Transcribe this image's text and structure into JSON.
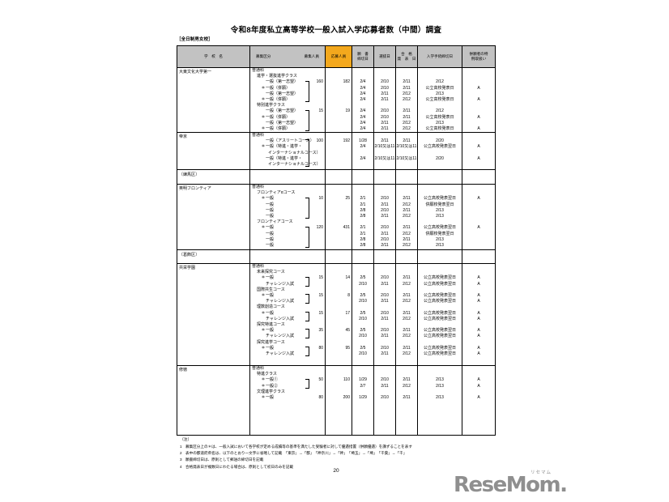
{
  "title": "令和8年度私立高等学校一般入試入学応募者数（中間）調査",
  "category_label": "［全日制男女校］",
  "colors": {
    "header_bg": "#c2c2c2",
    "applicants_bg": "#f3a81d",
    "logo_gray": "#8f8f8f"
  },
  "header": {
    "school_name": "学　校　名",
    "category": "募集区分",
    "capacity": "募集人員",
    "applicants": "応募人員",
    "deadline_l1": "願　書",
    "deadline_l2": "締切日",
    "selection": "選抜日",
    "announce_l1": "合　格",
    "announce_l2": "発　表　日",
    "procedure": "入学手続締切日",
    "special_l1": "併願者の特",
    "special_l2": "例取扱い"
  },
  "table": {
    "sections": [
      {
        "type": "school",
        "name": "大東文化大学第一",
        "lines": [
          {
            "indent": 0,
            "text": "普通科"
          },
          {
            "indent": 1,
            "text": "進学・選抜進学クラス"
          },
          {
            "indent": 2,
            "text": "一般（第一志望）",
            "bracket": "top",
            "capacity": "160",
            "applicants": "182",
            "dates": [
              "2/4",
              "2/10",
              "2/11",
              "2/12"
            ],
            "special": ""
          },
          {
            "indent": 2,
            "star": true,
            "text": "一般（併願）",
            "bracket": "mid",
            "dates": [
              "2/4",
              "2/10",
              "2/11",
              "公立高校発表日"
            ],
            "special": "A"
          },
          {
            "indent": 2,
            "text": "一般（第一志望）",
            "bracket": "mid",
            "dates": [
              "2/4",
              "2/11",
              "2/12",
              "2/13"
            ],
            "special": ""
          },
          {
            "indent": 2,
            "star": true,
            "text": "一般（併願）",
            "bracket": "bot",
            "dates": [
              "2/4",
              "2/11",
              "2/12",
              "公立高校発表日"
            ],
            "special": "A"
          },
          {
            "indent": 1,
            "text": "特別進学クラス"
          },
          {
            "indent": 2,
            "text": "一般（第一志望）",
            "bracket": "top",
            "capacity": "15",
            "applicants": "19",
            "dates": [
              "2/4",
              "2/10",
              "2/11",
              "2/12"
            ],
            "special": ""
          },
          {
            "indent": 2,
            "star": true,
            "text": "一般（併願）",
            "bracket": "mid",
            "dates": [
              "2/4",
              "2/10",
              "2/11",
              "公立高校発表日"
            ],
            "special": "A"
          },
          {
            "indent": 2,
            "text": "一般（第一志望）",
            "bracket": "mid",
            "dates": [
              "2/4",
              "2/11",
              "2/12",
              "2/13"
            ],
            "special": ""
          },
          {
            "indent": 2,
            "star": true,
            "text": "一般（併願）",
            "bracket": "bot",
            "dates": [
              "2/4",
              "2/11",
              "2/12",
              "公立高校発表日"
            ],
            "special": "A"
          }
        ]
      },
      {
        "type": "school",
        "name": "帝京",
        "lines": [
          {
            "indent": 0,
            "text": "普通科"
          },
          {
            "indent": 2,
            "text": "一般（アスリートコース）",
            "bracket": "top",
            "capacity": "100",
            "applicants": "192",
            "dates": [
              "1/28",
              "2/11",
              "2/11",
              "2/20"
            ],
            "special": ""
          },
          {
            "indent": 2,
            "star": true,
            "text": "一般（特進・進学・",
            "bracket": "mid",
            "dates": [
              "2/4",
              "2/10又は11",
              "2/10又は11",
              "公立高校発表翌日"
            ],
            "special": "A"
          },
          {
            "indent": 3,
            "text": "インターナショナルコース）",
            "bracket": "mid"
          },
          {
            "indent": 2,
            "text": "一般（特進・進学・",
            "bracket": "mid",
            "dates": [
              "2/4",
              "2/10又は11",
              "2/10又は11",
              "2/20"
            ],
            "special": "A"
          },
          {
            "indent": 3,
            "text": "インターナショナルコース）",
            "bracket": "bot"
          }
        ]
      },
      {
        "type": "ward",
        "name": "〔練馬区〕"
      },
      {
        "type": "school",
        "name": "英明フロンティア",
        "lines": [
          {
            "indent": 0,
            "text": "普通科"
          },
          {
            "indent": 1,
            "text": "フロンティアαコース"
          },
          {
            "indent": 2,
            "star": true,
            "text": "一般",
            "bracket": "top",
            "capacity": "10",
            "applicants": "25",
            "dates": [
              "2/1",
              "2/10",
              "2/11",
              "公立高校発表翌日"
            ],
            "special": "A"
          },
          {
            "indent": 2,
            "text": "一般",
            "bracket": "mid",
            "dates": [
              "2/1",
              "2/11",
              "2/12",
              "併願校発表翌日"
            ],
            "special": ""
          },
          {
            "indent": 2,
            "text": "一般",
            "bracket": "mid",
            "dates": [
              "2/8",
              "2/10",
              "2/11",
              "2/13"
            ],
            "special": ""
          },
          {
            "indent": 2,
            "text": "一般",
            "bracket": "bot",
            "dates": [
              "2/8",
              "2/11",
              "2/12",
              "2/13"
            ],
            "special": ""
          },
          {
            "indent": 1,
            "text": "フロンティアコース"
          },
          {
            "indent": 2,
            "star": true,
            "text": "一般",
            "bracket": "top",
            "capacity": "120",
            "applicants": "431",
            "dates": [
              "2/1",
              "2/10",
              "2/11",
              "公立高校発表翌日"
            ],
            "special": "A"
          },
          {
            "indent": 2,
            "text": "一般",
            "bracket": "mid",
            "dates": [
              "2/1",
              "2/11",
              "2/12",
              "併願校発表翌日"
            ],
            "special": ""
          },
          {
            "indent": 2,
            "text": "一般",
            "bracket": "mid",
            "dates": [
              "2/8",
              "2/10",
              "2/11",
              "2/13"
            ],
            "special": ""
          },
          {
            "indent": 2,
            "text": "一般",
            "bracket": "bot",
            "dates": [
              "2/8",
              "2/11",
              "2/12",
              "2/13"
            ],
            "special": ""
          }
        ]
      },
      {
        "type": "ward",
        "name": "〔葛飾区〕"
      },
      {
        "type": "school",
        "name": "共栄学園",
        "lines": [
          {
            "indent": 0,
            "text": "普通科"
          },
          {
            "indent": 1,
            "text": "未来探究コース"
          },
          {
            "indent": 2,
            "star": true,
            "text": "一般",
            "bracket": "top",
            "capacity": "15",
            "applicants": "14",
            "dates": [
              "2/5",
              "2/10",
              "2/11",
              "公立高校発表翌日"
            ],
            "special": "A"
          },
          {
            "indent": 2,
            "text": "チャレンジ入試",
            "bracket": "bot",
            "dates": [
              "2/10",
              "2/11",
              "2/12",
              "公立高校発表翌日"
            ],
            "special": "A"
          },
          {
            "indent": 1,
            "text": "国際共生コース"
          },
          {
            "indent": 2,
            "star": true,
            "text": "一般",
            "bracket": "top",
            "capacity": "15",
            "applicants": "8",
            "dates": [
              "2/5",
              "2/10",
              "2/11",
              "公立高校発表翌日"
            ],
            "special": "A"
          },
          {
            "indent": 2,
            "text": "チャレンジ入試",
            "bracket": "bot",
            "dates": [
              "2/10",
              "2/11",
              "2/12",
              "公立高校発表翌日"
            ],
            "special": "A"
          },
          {
            "indent": 1,
            "text": "理数創造コース"
          },
          {
            "indent": 2,
            "star": true,
            "text": "一般",
            "bracket": "top",
            "capacity": "15",
            "applicants": "17",
            "dates": [
              "2/5",
              "2/10",
              "2/11",
              "公立高校発表翌日"
            ],
            "special": "A"
          },
          {
            "indent": 2,
            "text": "チャレンジ入試",
            "bracket": "bot",
            "dates": [
              "2/10",
              "2/11",
              "2/12",
              "公立高校発表翌日"
            ],
            "special": "A"
          },
          {
            "indent": 1,
            "text": "探究特進コース"
          },
          {
            "indent": 2,
            "star": true,
            "text": "一般",
            "bracket": "top",
            "capacity": "35",
            "applicants": "45",
            "dates": [
              "2/5",
              "2/10",
              "2/11",
              "公立高校発表翌日"
            ],
            "special": "A"
          },
          {
            "indent": 2,
            "text": "チャレンジ入試",
            "bracket": "bot",
            "dates": [
              "2/10",
              "2/11",
              "2/12",
              "公立高校発表翌日"
            ],
            "special": "A"
          },
          {
            "indent": 1,
            "text": "探究進学コース"
          },
          {
            "indent": 2,
            "star": true,
            "text": "一般",
            "bracket": "top",
            "capacity": "80",
            "applicants": "95",
            "dates": [
              "2/5",
              "2/10",
              "2/11",
              "公立高校発表翌日"
            ],
            "special": "A"
          },
          {
            "indent": 2,
            "text": "チャレンジ入試",
            "bracket": "bot",
            "dates": [
              "2/10",
              "2/11",
              "2/12",
              "公立高校発表翌日"
            ],
            "special": "A"
          }
        ]
      },
      {
        "type": "school",
        "name": "修徳",
        "lines": [
          {
            "indent": 0,
            "text": "普通科"
          },
          {
            "indent": 1,
            "text": "特進クラス"
          },
          {
            "indent": 2,
            "star": true,
            "text": "一般①",
            "bracket": "top",
            "capacity": "50",
            "applicants": "110",
            "dates": [
              "1/29",
              "2/10",
              "2/11",
              "2/13"
            ],
            "special": "A"
          },
          {
            "indent": 2,
            "star": true,
            "text": "一般②",
            "bracket": "bot",
            "dates": [
              "2/7",
              "2/11",
              "2/12",
              "2/13"
            ],
            "special": "A"
          },
          {
            "indent": 1,
            "text": "文理進学クラス"
          },
          {
            "indent": 2,
            "star": true,
            "text": "一般",
            "capacity": "80",
            "applicants": "200",
            "dates": [
              "1/29",
              "2/10",
              "2/11",
              "2/13"
            ],
            "special": "A"
          }
        ]
      }
    ]
  },
  "notes": {
    "heading": "（注）",
    "items": [
      {
        "num": "1",
        "text": "募集区分上の＊は、一般入試において各学校が定める成績等の基準を満たした受験者に対して優遇措置（併願優遇）を講ずることを表す"
      },
      {
        "num": "2",
        "text": "表中の都道府県名は、以下のとおり一文字に省略して記載　「東京」→「都」　「神奈川」→「神」　「埼玉」→「埼」　「千葉」→「千」"
      },
      {
        "num": "3",
        "text": "願書締切日は、原則として郵送の締切日を記載"
      },
      {
        "num": "4",
        "text": "合格発表日が複数日にわたる場合は、原則として初日のみを記載"
      }
    ]
  },
  "page_number": "20",
  "logo": {
    "text": "ReseMom.",
    "ruby": "リセマム"
  }
}
